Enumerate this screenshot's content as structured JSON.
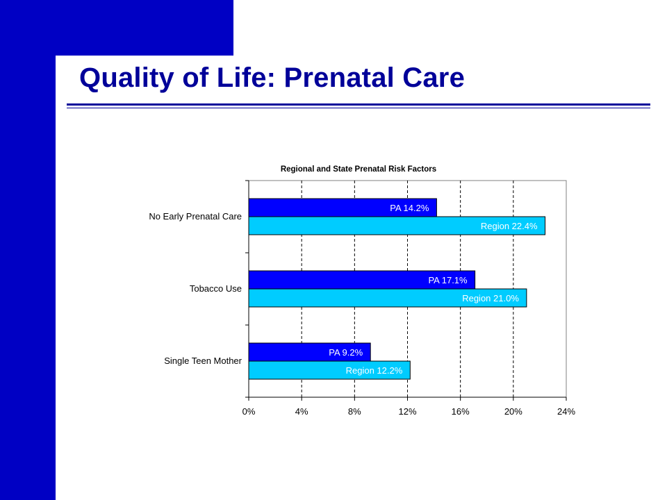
{
  "slide": {
    "title": "Quality of Life:  Prenatal Care"
  },
  "colors": {
    "brand_blue": "#0000c4",
    "title_blue": "#000099",
    "pa_bar": "#0000ff",
    "region_bar": "#00ccff"
  },
  "chart_data": {
    "type": "bar",
    "orientation": "horizontal",
    "title": "Regional and State Prenatal Risk Factors",
    "categories": [
      "No Early Prenatal Care",
      "Tobacco Use",
      "Single Teen Mother"
    ],
    "series": [
      {
        "name": "PA",
        "values": [
          14.2,
          17.1,
          9.2
        ],
        "color": "#0000ff",
        "label_color": "#ffffff"
      },
      {
        "name": "Region",
        "values": [
          22.4,
          21.0,
          12.2
        ],
        "color": "#00ccff",
        "label_color": "#ffffff"
      }
    ],
    "data_labels": [
      [
        "PA    14.2%",
        "PA    17.1%",
        "PA    9.2%"
      ],
      [
        "Region    22.4%",
        "Region    21.0%",
        "Region    12.2%"
      ]
    ],
    "xlim": [
      0,
      24
    ],
    "x_ticks": [
      0,
      4,
      8,
      12,
      16,
      20,
      24
    ],
    "x_tick_labels": [
      "0%",
      "4%",
      "8%",
      "12%",
      "16%",
      "20%",
      "24%"
    ],
    "grid": "vertical dashed",
    "legend": "none"
  }
}
